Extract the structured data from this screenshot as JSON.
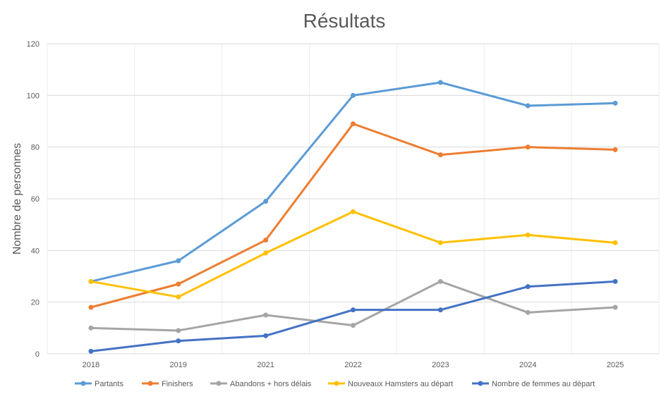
{
  "chart_data": {
    "type": "line",
    "title": "Résultats",
    "xlabel": "",
    "ylabel": "Nombre de personnes",
    "categories": [
      "2018",
      "2019",
      "2021",
      "2022",
      "2023",
      "2024",
      "2025"
    ],
    "ylim": [
      0,
      120
    ],
    "yticks": [
      0,
      20,
      40,
      60,
      80,
      100,
      120
    ],
    "grid": true,
    "legend_position": "bottom",
    "series": [
      {
        "name": "Partants",
        "color": "#5B9BD5",
        "values": [
          28,
          36,
          59,
          100,
          105,
          96,
          97
        ]
      },
      {
        "name": "Finishers",
        "color": "#ED7D31",
        "values": [
          18,
          27,
          44,
          89,
          77,
          80,
          79
        ]
      },
      {
        "name": "Abandons + hors délais",
        "color": "#A5A5A5",
        "values": [
          10,
          9,
          15,
          11,
          28,
          16,
          18
        ]
      },
      {
        "name": "Nouveaux Hamsters au départ",
        "color": "#FFC000",
        "values": [
          28,
          22,
          39,
          55,
          43,
          46,
          43
        ]
      },
      {
        "name": "Nombre de femmes au départ",
        "color": "#4472C4",
        "values": [
          1,
          5,
          7,
          17,
          17,
          26,
          28
        ]
      }
    ]
  }
}
